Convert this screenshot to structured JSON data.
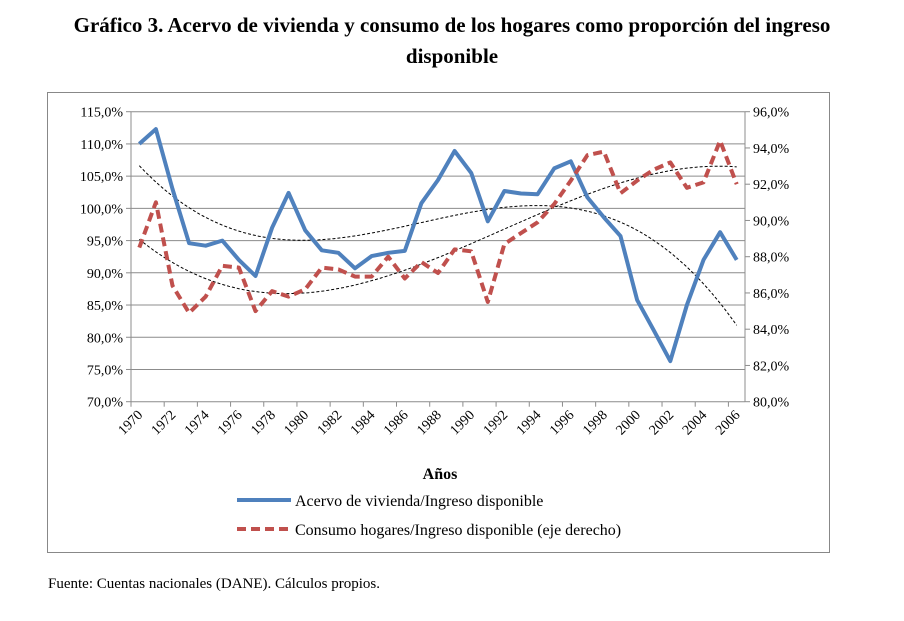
{
  "title_line1": "Gráfico 3. Acervo de vivienda y consumo de los hogares como proporción del ingreso",
  "title_line2": "disponible",
  "source": "Fuente: Cuentas nacionales (DANE). Cálculos propios.",
  "chart_data": {
    "type": "line",
    "xlabel": "Años",
    "x": [
      1970,
      1971,
      1972,
      1973,
      1974,
      1975,
      1976,
      1977,
      1978,
      1979,
      1980,
      1981,
      1982,
      1983,
      1984,
      1985,
      1986,
      1987,
      1988,
      1989,
      1990,
      1991,
      1992,
      1993,
      1994,
      1995,
      1996,
      1997,
      1998,
      1999,
      2000,
      2001,
      2002,
      2003,
      2004,
      2005,
      2006
    ],
    "x_tick_labels": [
      "1970",
      "1972",
      "1974",
      "1976",
      "1978",
      "1980",
      "1982",
      "1984",
      "1986",
      "1988",
      "1990",
      "1992",
      "1994",
      "1996",
      "1998",
      "2000",
      "2002",
      "2004",
      "2006"
    ],
    "y_left": {
      "lim": [
        70,
        115
      ],
      "ticks": [
        "70,0%",
        "75,0%",
        "80,0%",
        "85,0%",
        "90,0%",
        "95,0%",
        "100,0%",
        "105,0%",
        "110,0%",
        "115,0%"
      ]
    },
    "y_right": {
      "lim": [
        80,
        96
      ],
      "ticks": [
        "80,0%",
        "82,0%",
        "84,0%",
        "86,0%",
        "88,0%",
        "90,0%",
        "92,0%",
        "94,0%",
        "96,0%"
      ]
    },
    "grid": true,
    "legend_position": "bottom",
    "trendline": "polynomial",
    "series": [
      {
        "name": "Acervo de vivienda/Ingreso disponible",
        "axis": "left",
        "color": "#4f81bd",
        "style": "solid",
        "values": [
          110.0,
          112.3,
          103.0,
          94.6,
          94.2,
          95.0,
          92.0,
          89.5,
          97.0,
          102.4,
          96.6,
          93.5,
          93.1,
          90.7,
          92.6,
          93.1,
          93.4,
          100.8,
          104.4,
          108.9,
          105.5,
          98.0,
          102.7,
          102.3,
          102.2,
          106.2,
          107.3,
          101.7,
          98.6,
          95.7,
          85.8,
          81.1,
          76.3,
          85.0,
          92.0,
          96.3,
          92.0
        ]
      },
      {
        "name": "Consumo hogares/Ingreso disponible (eje derecho)",
        "axis": "right",
        "color": "#c0504d",
        "style": "dashed",
        "values": [
          88.5,
          91.0,
          86.4,
          84.9,
          85.8,
          87.5,
          87.4,
          85.0,
          86.1,
          85.8,
          86.2,
          87.4,
          87.3,
          86.9,
          86.9,
          88.0,
          86.8,
          87.7,
          87.1,
          88.4,
          88.3,
          85.5,
          88.7,
          89.3,
          89.9,
          90.9,
          92.2,
          93.6,
          93.8,
          91.5,
          92.2,
          92.8,
          93.2,
          91.8,
          92.1,
          94.4,
          92.0
        ]
      }
    ]
  }
}
